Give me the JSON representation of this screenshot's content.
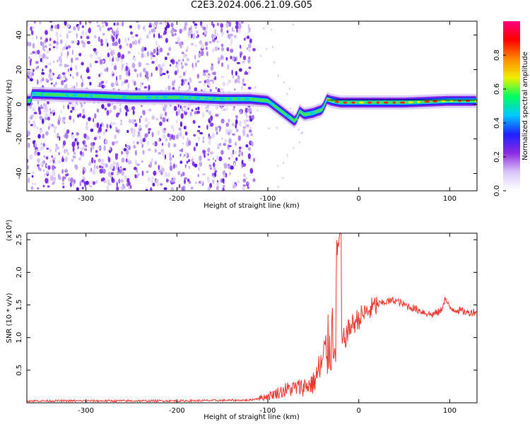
{
  "title": "C2E3.2024.006.21.09.G05",
  "chart_data": [
    {
      "type": "heatmap",
      "xlabel": "Height of straight line (km)",
      "ylabel": "Frequency (Hz)",
      "xlim": [
        -365,
        130
      ],
      "ylim": [
        -50,
        48
      ],
      "xticks": [
        -300,
        -200,
        -100,
        0,
        100
      ],
      "yticks": [
        -40,
        -20,
        0,
        20,
        40
      ],
      "colorbar": {
        "label": "Normalized spectral amplitude",
        "range": [
          0.0,
          1.0
        ],
        "ticks": [
          "0.0",
          "0.2",
          "0.4",
          "0.6",
          "0.8"
        ],
        "colors": [
          "#ffffff",
          "#d8c8f8",
          "#8a2be2",
          "#2020ff",
          "#00c8ff",
          "#00ff60",
          "#f0f000",
          "#ff8800",
          "#ff0000",
          "#ff0080"
        ]
      },
      "ridge_frequency": {
        "x": [
          -360,
          -300,
          -250,
          -200,
          -150,
          -120,
          -100,
          -90,
          -80,
          -75,
          -70,
          -65,
          -60,
          -50,
          -40,
          -35,
          -30,
          -20,
          0,
          50,
          100,
          130
        ],
        "y": [
          6,
          5,
          4,
          4,
          3,
          3,
          2,
          -2,
          -6,
          -8,
          -10,
          -4,
          -6,
          -5,
          -3,
          3,
          2,
          1,
          1,
          1,
          2,
          2
        ]
      },
      "noise_band_x": [
        -365,
        -115
      ]
    },
    {
      "type": "line",
      "xlabel": "Height of straight line (km)",
      "ylabel": "SNR (10 * v/v)",
      "y_multiplier": "(x10⁴)",
      "xlim": [
        -365,
        130
      ],
      "ylim": [
        0,
        2.6
      ],
      "xticks": [
        -300,
        -200,
        -100,
        0,
        100
      ],
      "yticks": [
        0.5,
        1.0,
        1.5,
        2.0,
        2.5
      ],
      "color": "#e8352e",
      "series": [
        {
          "x": [
            -365,
            -300,
            -200,
            -120,
            -100,
            -80,
            -60,
            -50,
            -40,
            -35,
            -30,
            -25,
            -22,
            -20,
            -15,
            -10,
            0,
            10,
            20,
            30,
            40,
            50,
            60,
            70,
            80,
            90,
            95,
            100,
            110,
            120,
            130
          ],
          "y": [
            0.03,
            0.03,
            0.03,
            0.04,
            0.1,
            0.2,
            0.25,
            0.3,
            0.6,
            0.8,
            1.0,
            1.3,
            2.5,
            0.9,
            1.0,
            1.15,
            1.3,
            1.4,
            1.5,
            1.55,
            1.57,
            1.5,
            1.45,
            1.4,
            1.35,
            1.4,
            1.6,
            1.45,
            1.42,
            1.38,
            1.4
          ]
        }
      ]
    }
  ]
}
